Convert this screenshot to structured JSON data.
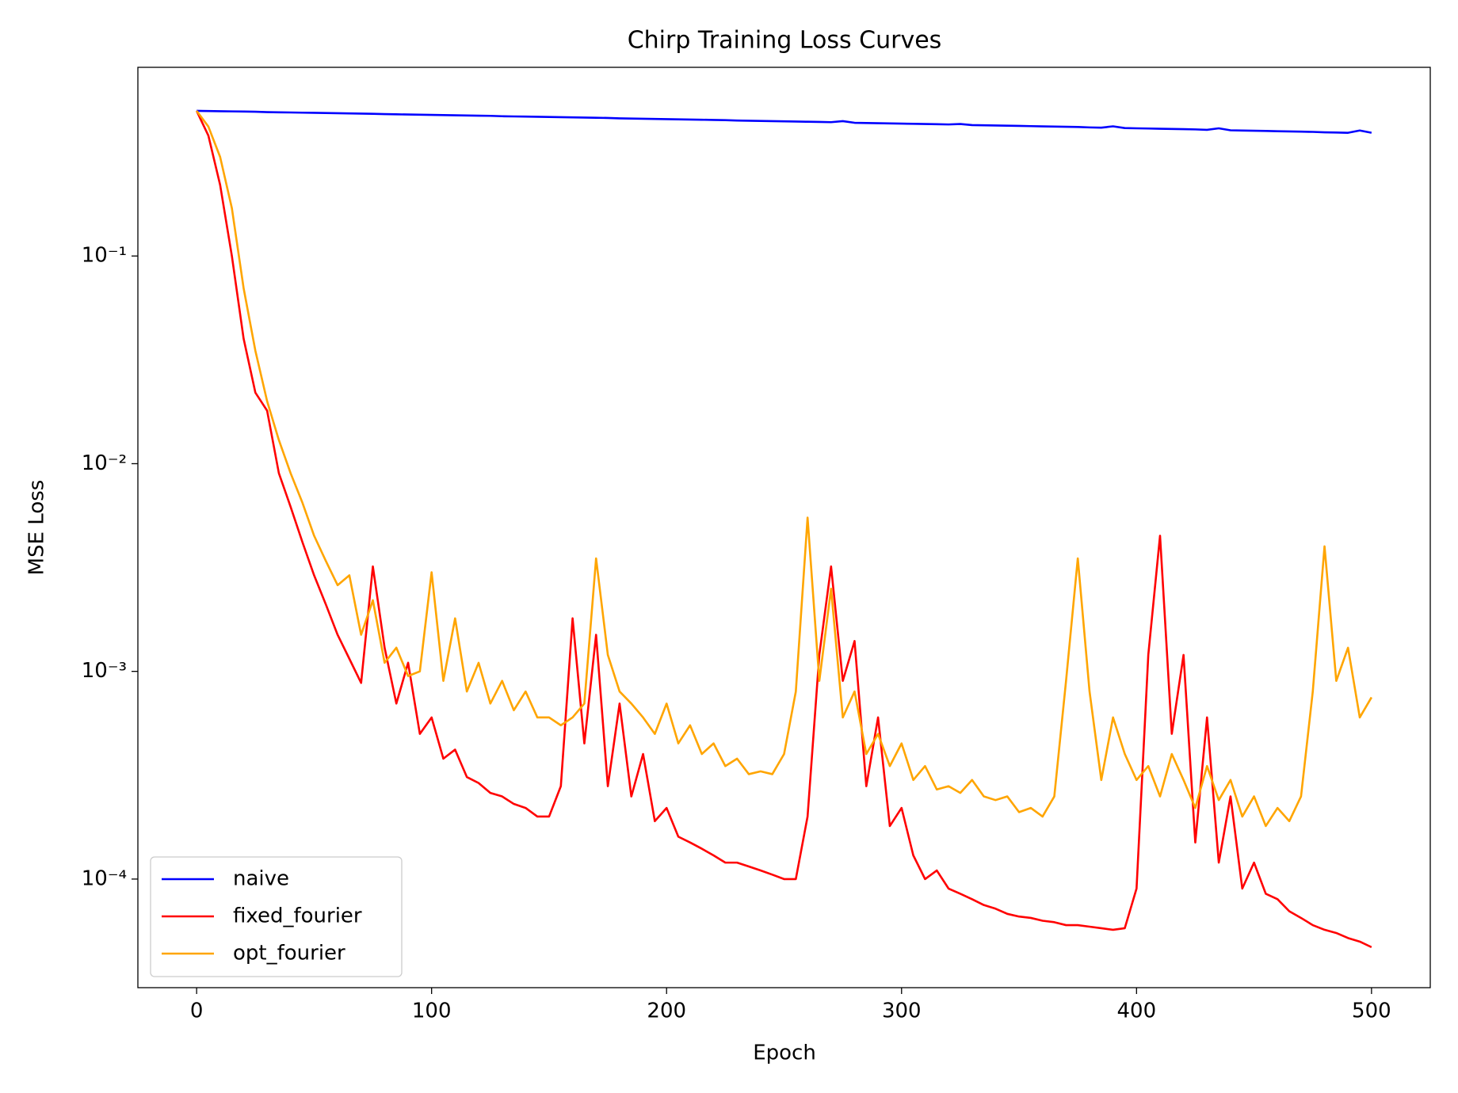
{
  "chart_data": {
    "type": "line",
    "title": "Chirp Training Loss Curves",
    "xlabel": "Epoch",
    "ylabel": "MSE Loss",
    "log_y": true,
    "legend": "lower left",
    "xlim": [
      -25,
      525
    ],
    "xticks": [
      0,
      100,
      200,
      300,
      400,
      500
    ],
    "ylim": [
      3e-05,
      0.81
    ],
    "yticks": [
      {
        "value": 0.0001,
        "label": "10⁻⁴"
      },
      {
        "value": 0.001,
        "label": "10⁻³"
      },
      {
        "value": 0.01,
        "label": "10⁻²"
      },
      {
        "value": 0.1,
        "label": "10⁻¹"
      }
    ],
    "x": [
      0,
      5,
      10,
      15,
      20,
      25,
      30,
      35,
      40,
      45,
      50,
      55,
      60,
      65,
      70,
      75,
      80,
      85,
      90,
      95,
      100,
      105,
      110,
      115,
      120,
      125,
      130,
      135,
      140,
      145,
      150,
      155,
      160,
      165,
      170,
      175,
      180,
      185,
      190,
      195,
      200,
      205,
      210,
      215,
      220,
      225,
      230,
      235,
      240,
      245,
      250,
      255,
      260,
      265,
      270,
      275,
      280,
      285,
      290,
      295,
      300,
      305,
      310,
      315,
      320,
      325,
      330,
      335,
      340,
      345,
      350,
      355,
      360,
      365,
      370,
      375,
      380,
      385,
      390,
      395,
      400,
      405,
      410,
      415,
      420,
      425,
      430,
      435,
      440,
      445,
      450,
      455,
      460,
      465,
      470,
      475,
      480,
      485,
      490,
      495,
      500
    ],
    "series": [
      {
        "name": "naive",
        "color": "#0000ff",
        "values": [
          0.5,
          0.499,
          0.498,
          0.497,
          0.496,
          0.495,
          0.493,
          0.492,
          0.491,
          0.49,
          0.489,
          0.488,
          0.487,
          0.486,
          0.485,
          0.484,
          0.482,
          0.481,
          0.48,
          0.479,
          0.478,
          0.477,
          0.476,
          0.475,
          0.474,
          0.473,
          0.471,
          0.47,
          0.469,
          0.468,
          0.467,
          0.466,
          0.465,
          0.464,
          0.463,
          0.462,
          0.46,
          0.459,
          0.458,
          0.457,
          0.456,
          0.455,
          0.454,
          0.453,
          0.452,
          0.451,
          0.449,
          0.448,
          0.447,
          0.446,
          0.445,
          0.444,
          0.443,
          0.442,
          0.441,
          0.446,
          0.438,
          0.437,
          0.436,
          0.435,
          0.434,
          0.433,
          0.432,
          0.431,
          0.43,
          0.432,
          0.427,
          0.426,
          0.425,
          0.424,
          0.423,
          0.422,
          0.421,
          0.42,
          0.419,
          0.418,
          0.416,
          0.415,
          0.421,
          0.413,
          0.412,
          0.411,
          0.41,
          0.409,
          0.408,
          0.407,
          0.405,
          0.412,
          0.403,
          0.402,
          0.401,
          0.4,
          0.399,
          0.398,
          0.397,
          0.396,
          0.394,
          0.393,
          0.392,
          0.402,
          0.392
        ]
      },
      {
        "name": "fixed_fourier",
        "color": "#ff0000",
        "values": [
          0.5,
          0.38,
          0.22,
          0.1,
          0.04,
          0.022,
          0.018,
          0.009,
          0.0062,
          0.0042,
          0.0029,
          0.0021,
          0.0015,
          0.00115,
          0.00088,
          0.0032,
          0.0013,
          0.0007,
          0.0011,
          0.0005,
          0.0006,
          0.00038,
          0.00042,
          0.00031,
          0.00029,
          0.00026,
          0.00025,
          0.00023,
          0.00022,
          0.0002,
          0.0002,
          0.00028,
          0.0018,
          0.00045,
          0.0015,
          0.00028,
          0.0007,
          0.00025,
          0.0004,
          0.00019,
          0.00022,
          0.00016,
          0.00015,
          0.00014,
          0.00013,
          0.00012,
          0.00012,
          0.000115,
          0.00011,
          0.000105,
          0.0001,
          0.0001,
          0.0002,
          0.0012,
          0.0032,
          0.0009,
          0.0014,
          0.00028,
          0.0006,
          0.00018,
          0.00022,
          0.00013,
          0.0001,
          0.00011,
          9e-05,
          8.5e-05,
          8e-05,
          7.5e-05,
          7.2e-05,
          6.8e-05,
          6.6e-05,
          6.5e-05,
          6.3e-05,
          6.2e-05,
          6e-05,
          6e-05,
          5.9e-05,
          5.8e-05,
          5.7e-05,
          5.8e-05,
          9e-05,
          0.0012,
          0.0045,
          0.0005,
          0.0012,
          0.00015,
          0.0006,
          0.00012,
          0.00025,
          9e-05,
          0.00012,
          8.5e-05,
          8e-05,
          7e-05,
          6.5e-05,
          6e-05,
          5.7e-05,
          5.5e-05,
          5.2e-05,
          5e-05,
          4.7e-05
        ]
      },
      {
        "name": "opt_fourier",
        "color": "#ffa500",
        "values": [
          0.5,
          0.42,
          0.3,
          0.17,
          0.07,
          0.035,
          0.02,
          0.013,
          0.009,
          0.0065,
          0.0045,
          0.0034,
          0.0026,
          0.0029,
          0.0015,
          0.0022,
          0.0011,
          0.0013,
          0.00095,
          0.001,
          0.003,
          0.0009,
          0.0018,
          0.0008,
          0.0011,
          0.0007,
          0.0009,
          0.00065,
          0.0008,
          0.0006,
          0.0006,
          0.00055,
          0.0006,
          0.0007,
          0.0035,
          0.0012,
          0.0008,
          0.0007,
          0.0006,
          0.0005,
          0.0007,
          0.00045,
          0.00055,
          0.0004,
          0.00045,
          0.00035,
          0.00038,
          0.00032,
          0.00033,
          0.00032,
          0.0004,
          0.0008,
          0.0055,
          0.0009,
          0.0025,
          0.0006,
          0.0008,
          0.0004,
          0.0005,
          0.00035,
          0.00045,
          0.0003,
          0.00035,
          0.00027,
          0.00028,
          0.00026,
          0.0003,
          0.00025,
          0.00024,
          0.00025,
          0.00021,
          0.00022,
          0.0002,
          0.00025,
          0.0009,
          0.0035,
          0.0008,
          0.0003,
          0.0006,
          0.0004,
          0.0003,
          0.00035,
          0.00025,
          0.0004,
          0.0003,
          0.00022,
          0.00035,
          0.00024,
          0.0003,
          0.0002,
          0.00025,
          0.00018,
          0.00022,
          0.00019,
          0.00025,
          0.0008,
          0.004,
          0.0009,
          0.0013,
          0.0006,
          0.00075
        ]
      }
    ]
  }
}
